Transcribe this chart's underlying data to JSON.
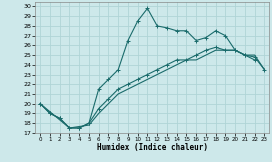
{
  "xlabel": "Humidex (Indice chaleur)",
  "xlim": [
    -0.5,
    23.5
  ],
  "ylim": [
    17,
    30.5
  ],
  "yticks": [
    17,
    18,
    19,
    20,
    21,
    22,
    23,
    24,
    25,
    26,
    27,
    28,
    29,
    30
  ],
  "xticks": [
    0,
    1,
    2,
    3,
    4,
    5,
    6,
    7,
    8,
    9,
    10,
    11,
    12,
    13,
    14,
    15,
    16,
    17,
    18,
    19,
    20,
    21,
    22,
    23
  ],
  "bg_color": "#cde8ea",
  "grid_color": "#b0d4d6",
  "line_color": "#1a6b6b",
  "series1_x": [
    0,
    1,
    2,
    3,
    4,
    5,
    6,
    7,
    8,
    9,
    10,
    11,
    12,
    13,
    14,
    15,
    16,
    17,
    18,
    19,
    20,
    21,
    22
  ],
  "series1_y": [
    20,
    19,
    18.5,
    17.5,
    17.5,
    18,
    21.5,
    22.5,
    23.5,
    26.5,
    28.5,
    29.8,
    28,
    27.8,
    27.5,
    27.5,
    26.5,
    26.8,
    27.5,
    27.0,
    25.5,
    25.0,
    24.5
  ],
  "series2_x": [
    0,
    1,
    2,
    3,
    4,
    5,
    6,
    7,
    8,
    9,
    10,
    11,
    12,
    13,
    14,
    15,
    16,
    17,
    18,
    19,
    20,
    21,
    22,
    23
  ],
  "series2_y": [
    20,
    19,
    18.5,
    17.5,
    17.5,
    18.0,
    19.5,
    20.5,
    21.5,
    22.0,
    22.5,
    23.0,
    23.5,
    24.0,
    24.5,
    24.5,
    25.0,
    25.5,
    25.8,
    25.5,
    25.5,
    25.0,
    24.8,
    23.5
  ],
  "series3_x": [
    0,
    3,
    5,
    6,
    7,
    8,
    9,
    10,
    11,
    12,
    13,
    14,
    15,
    16,
    17,
    18,
    19,
    20,
    21,
    22,
    23
  ],
  "series3_y": [
    20,
    17.5,
    17.8,
    19.0,
    20.0,
    21.0,
    21.5,
    22.0,
    22.5,
    23.0,
    23.5,
    24.0,
    24.5,
    24.5,
    25.0,
    25.5,
    25.5,
    25.5,
    25.0,
    25.0,
    23.5
  ]
}
